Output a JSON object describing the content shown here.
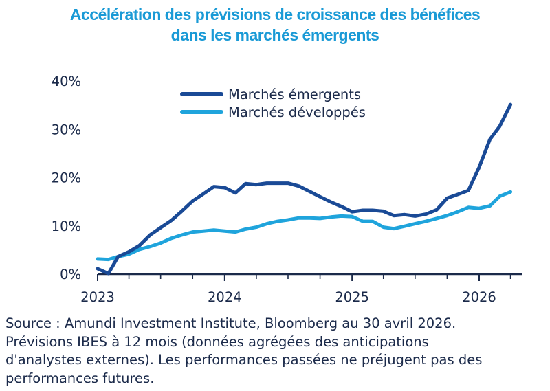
{
  "colors": {
    "title": "#1a9ad6",
    "axis": "#1b2a4a",
    "text": "#1b2a4a",
    "emerging": "#1a4a96",
    "developed": "#1fa4dc"
  },
  "title": {
    "line1": "Accélération des prévisions de croissance des bénéfices",
    "line2": "dans les marchés émergents"
  },
  "note": {
    "line1": "Source : Amundi Investment Institute, Bloomberg au 30 avril 2026.",
    "line2": "Prévisions IBES à 12 mois (données agrégées des anticipations",
    "line3": "d'analystes externes). Les performances passées ne préjugent pas des",
    "line4": "performances futures."
  },
  "chart_data": {
    "type": "line",
    "title": "Accélération des prévisions de croissance des bénéfices dans les marchés émergents",
    "xlabel": "",
    "ylabel": "",
    "x_ticks": [
      "2023",
      "2024",
      "2025",
      "2026"
    ],
    "y_ticks": [
      "0%",
      "10%",
      "20%",
      "30%",
      "40%"
    ],
    "ylim": [
      0,
      40
    ],
    "grid": false,
    "legend_position": "top-center",
    "x": [
      "2023-01",
      "2023-02",
      "2023-03",
      "2023-04",
      "2023-05",
      "2023-06",
      "2023-07",
      "2023-08",
      "2023-09",
      "2023-10",
      "2023-11",
      "2023-12",
      "2024-01",
      "2024-02",
      "2024-03",
      "2024-04",
      "2024-05",
      "2024-06",
      "2024-07",
      "2024-08",
      "2024-09",
      "2024-10",
      "2024-11",
      "2024-12",
      "2025-01",
      "2025-02",
      "2025-03",
      "2025-04",
      "2025-05",
      "2025-06",
      "2025-07",
      "2025-08",
      "2025-09",
      "2025-10",
      "2025-11",
      "2025-12",
      "2026-01",
      "2026-02",
      "2026-03",
      "2026-04"
    ],
    "series": [
      {
        "name": "Marchés émergents",
        "values": [
          1.0,
          0.0,
          3.5,
          4.5,
          5.8,
          8.0,
          9.5,
          11.0,
          13.0,
          15.0,
          16.5,
          18.0,
          17.8,
          16.7,
          18.6,
          18.4,
          18.7,
          18.7,
          18.7,
          18.1,
          17.0,
          15.9,
          14.8,
          13.9,
          12.8,
          13.1,
          13.1,
          12.9,
          12.0,
          12.2,
          11.9,
          12.3,
          13.2,
          15.6,
          16.4,
          17.2,
          22.0,
          27.8,
          30.5,
          35.0
        ]
      },
      {
        "name": "Marchés développés",
        "values": [
          3.0,
          2.9,
          3.5,
          4.0,
          5.0,
          5.6,
          6.3,
          7.3,
          8.0,
          8.6,
          8.8,
          9.0,
          8.8,
          8.6,
          9.2,
          9.6,
          10.3,
          10.8,
          11.1,
          11.5,
          11.5,
          11.4,
          11.7,
          11.9,
          11.8,
          10.8,
          10.8,
          9.6,
          9.3,
          9.8,
          10.3,
          10.8,
          11.4,
          12.0,
          12.8,
          13.7,
          13.5,
          14.0,
          16.0,
          16.9
        ]
      }
    ]
  }
}
